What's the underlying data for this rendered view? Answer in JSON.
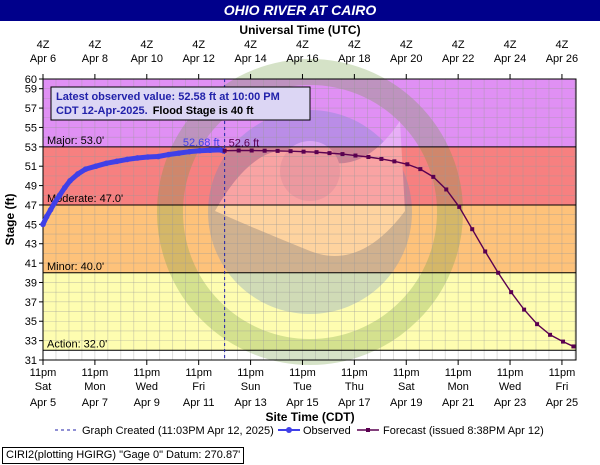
{
  "title": "OHIO RIVER AT CAIRO",
  "top_axis_title": "Universal Time (UTC)",
  "bottom_axis_title": "Site Time (CDT)",
  "y_axis_title": "Stage (ft)",
  "info_box": {
    "line1": "Latest observed value: 52.58 ft at 10:00 PM",
    "line2a": "CDT 12-Apr-2025.",
    "line2b": "Flood Stage is 40 ft"
  },
  "callouts": {
    "observed": "52.68 ft",
    "forecast": "52.6 ft"
  },
  "legend": {
    "graph_created": "Graph Created (11:03PM Apr 12, 2025)",
    "observed": "Observed",
    "forecast": "Forecast (issued 8:38PM Apr 12)"
  },
  "footer": "CIRI2(plotting HGIRG) \"Gage 0\" Datum: 270.87'",
  "colors": {
    "title_bg": "#00008b",
    "major": "#e090f4",
    "moderate": "#f78080",
    "minor": "#fec27a",
    "action": "#fefdb0",
    "normal": "#ffffff",
    "observed": "#4040e8",
    "forecast": "#5a0050",
    "graph_created_line": "#2222aa"
  },
  "chart_data": {
    "type": "line",
    "xlabel": "Site Time (CDT)",
    "ylabel": "Stage (ft)",
    "ylim": [
      31,
      60
    ],
    "y_ticks": [
      31,
      33,
      35,
      37,
      39,
      41,
      43,
      45,
      47,
      49,
      51,
      53,
      55,
      57,
      59,
      60
    ],
    "x_range_days_apr": [
      5.958,
      26.5
    ],
    "grid": true,
    "bottom_ticks": [
      {
        "top": "11pm",
        "mid": "Sat",
        "bottom": "Apr 5",
        "day": 5.958
      },
      {
        "top": "11pm",
        "mid": "Mon",
        "bottom": "Apr 7",
        "day": 7.958
      },
      {
        "top": "11pm",
        "mid": "Wed",
        "bottom": "Apr 9",
        "day": 9.958
      },
      {
        "top": "11pm",
        "mid": "Fri",
        "bottom": "Apr 11",
        "day": 11.958
      },
      {
        "top": "11pm",
        "mid": "Sun",
        "bottom": "Apr 13",
        "day": 13.958
      },
      {
        "top": "11pm",
        "mid": "Tue",
        "bottom": "Apr 15",
        "day": 15.958
      },
      {
        "top": "11pm",
        "mid": "Thu",
        "bottom": "Apr 17",
        "day": 17.958
      },
      {
        "top": "11pm",
        "mid": "Sat",
        "bottom": "Apr 19",
        "day": 19.958
      },
      {
        "top": "11pm",
        "mid": "Mon",
        "bottom": "Apr 21",
        "day": 21.958
      },
      {
        "top": "11pm",
        "mid": "Wed",
        "bottom": "Apr 23",
        "day": 23.958
      },
      {
        "top": "11pm",
        "mid": "Fri",
        "bottom": "Apr 25",
        "day": 25.958
      }
    ],
    "top_ticks": [
      {
        "hour": "4Z",
        "date": "Apr  6",
        "day": 5.958
      },
      {
        "hour": "4Z",
        "date": "Apr  8",
        "day": 7.958
      },
      {
        "hour": "4Z",
        "date": "Apr 10",
        "day": 9.958
      },
      {
        "hour": "4Z",
        "date": "Apr 12",
        "day": 11.958
      },
      {
        "hour": "4Z",
        "date": "Apr 14",
        "day": 13.958
      },
      {
        "hour": "4Z",
        "date": "Apr 16",
        "day": 15.958
      },
      {
        "hour": "4Z",
        "date": "Apr 18",
        "day": 17.958
      },
      {
        "hour": "4Z",
        "date": "Apr 20",
        "day": 19.958
      },
      {
        "hour": "4Z",
        "date": "Apr 22",
        "day": 21.958
      },
      {
        "hour": "4Z",
        "date": "Apr 24",
        "day": 23.958
      },
      {
        "hour": "4Z",
        "date": "Apr 26",
        "day": 25.958
      }
    ],
    "flood_categories": [
      {
        "name": "Major",
        "label": "Major: 53.0'",
        "stage": 53.0,
        "color": "#e090f4"
      },
      {
        "name": "Moderate",
        "label": "Moderate: 47.0'",
        "stage": 47.0,
        "color": "#f78080"
      },
      {
        "name": "Minor",
        "label": "Minor: 40.0'",
        "stage": 40.0,
        "color": "#fec27a"
      },
      {
        "name": "Action",
        "label": "Action: 32.0'",
        "stage": 32.0,
        "color": "#fefdb0"
      }
    ],
    "graph_created_day": 12.958,
    "observed": {
      "name": "Observed",
      "day": [
        5.958,
        6.1,
        6.25,
        6.4,
        6.6,
        6.8,
        7.0,
        7.3,
        7.6,
        8.0,
        8.4,
        8.8,
        9.2,
        9.6,
        10.0,
        10.4,
        10.8,
        11.2,
        11.6,
        12.0,
        12.4,
        12.8,
        12.917
      ],
      "stage": [
        45.0,
        45.8,
        46.5,
        47.2,
        48.0,
        48.8,
        49.5,
        50.2,
        50.7,
        51.0,
        51.3,
        51.5,
        51.7,
        51.85,
        51.95,
        52.0,
        52.2,
        52.35,
        52.5,
        52.6,
        52.65,
        52.68,
        52.58
      ]
    },
    "forecast": {
      "name": "Forecast (issued 8:38PM Apr 12)",
      "day": [
        12.958,
        13.5,
        14.0,
        14.5,
        15.0,
        15.5,
        16.0,
        16.5,
        17.0,
        17.5,
        18.0,
        18.5,
        19.0,
        19.5,
        20.0,
        20.5,
        21.0,
        21.5,
        22.0,
        22.5,
        23.0,
        23.5,
        24.0,
        24.5,
        25.0,
        25.5,
        26.0,
        26.4
      ],
      "stage": [
        52.6,
        52.62,
        52.62,
        52.6,
        52.58,
        52.55,
        52.5,
        52.45,
        52.35,
        52.25,
        52.1,
        51.95,
        51.75,
        51.5,
        51.2,
        50.7,
        49.9,
        48.6,
        46.8,
        44.5,
        42.2,
        40.0,
        38.0,
        36.2,
        34.7,
        33.6,
        32.9,
        32.4
      ]
    }
  }
}
